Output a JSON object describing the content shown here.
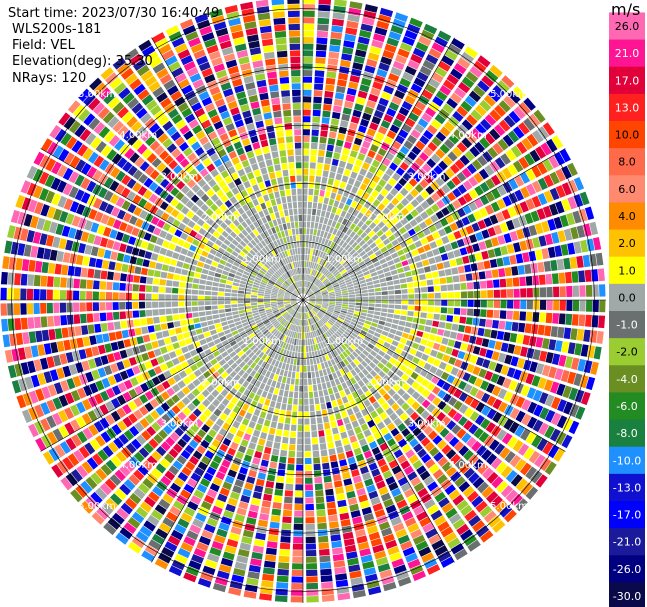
{
  "header": {
    "start_time": "Start time: 2023/07/30 16:40:49",
    "instrument": "WLS200s-181",
    "field": "Field: VEL",
    "elevation": "Elevation(deg): 35.30",
    "nrays": "NRays: 120"
  },
  "chart_data": {
    "type": "heatmap",
    "projection": "polar-ppi",
    "field": "VEL",
    "units": "m/s",
    "n_rays": 120,
    "range_rings_km": [
      1.0,
      2.0,
      3.0,
      4.0,
      5.0
    ],
    "range_labels": [
      "1.00km",
      "2.00km",
      "3.00km",
      "4.00km",
      "5.00km"
    ],
    "max_range_km": 5.2,
    "colorbar": {
      "unit_label": "m/s",
      "tick_labels": [
        "26.0",
        "21.0",
        "17.0",
        "13.0",
        "10.0",
        "8.0",
        "6.0",
        "4.0",
        "2.0",
        "1.0",
        "0.0",
        "-1.0",
        "-2.0",
        "-4.0",
        "-6.0",
        "-8.0",
        "-10.0",
        "-13.0",
        "-17.0",
        "-21.0",
        "-26.0",
        "-30.0"
      ],
      "colors": [
        "#ff69b4",
        "#ff1493",
        "#e2003b",
        "#ff2020",
        "#ff4500",
        "#ff6a4a",
        "#ff8a70",
        "#ff8c00",
        "#ffc200",
        "#ffff00",
        "#a0a8a8",
        "#6a7070",
        "#9acd32",
        "#6b8e23",
        "#228b22",
        "#1a8040",
        "#1e90ff",
        "#1010d0",
        "#0000ff",
        "#1a1a9a",
        "#000080",
        "#0a0a4a"
      ]
    }
  }
}
